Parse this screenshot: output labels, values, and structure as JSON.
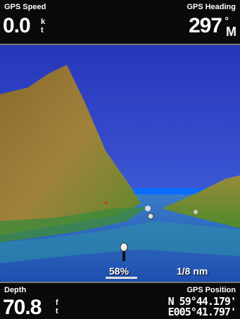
{
  "top_bar": {
    "left": {
      "label": "GPS Speed",
      "value": "0.0",
      "unit": [
        "k",
        "t"
      ]
    },
    "right": {
      "label": "GPS Heading",
      "value": "297",
      "unit": [
        "°",
        "M"
      ]
    }
  },
  "view": {
    "zoom": "58%",
    "scale": "1/8 nm"
  },
  "bottom_bar": {
    "left": {
      "label": "Depth",
      "value": "70.8",
      "unit": [
        "f",
        "t"
      ]
    },
    "right": {
      "label": "GPS Position",
      "lines": [
        "N 59°44.179'",
        "E005°41.797'"
      ]
    }
  }
}
